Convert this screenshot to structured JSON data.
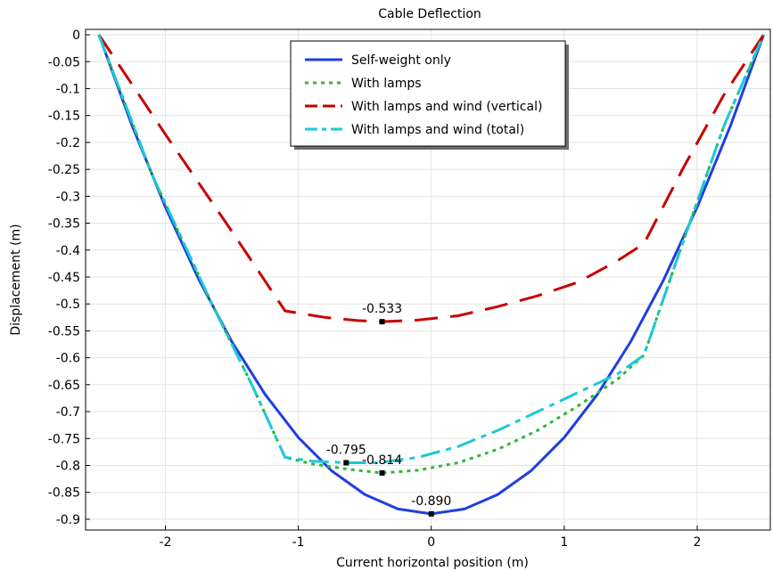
{
  "chart_data": {
    "type": "line",
    "title": "Cable Deflection",
    "xlabel": "Current horizontal position (m)",
    "ylabel": "Displacement (m)",
    "xlim": [
      -2.6,
      2.55
    ],
    "ylim": [
      -0.92,
      0.01
    ],
    "xticks": [
      -2,
      -1,
      0,
      1,
      2
    ],
    "yticks": [
      0,
      -0.05,
      -0.1,
      -0.15,
      -0.2,
      -0.25,
      -0.3,
      -0.35,
      -0.4,
      -0.45,
      -0.5,
      -0.55,
      -0.6,
      -0.65,
      -0.7,
      -0.75,
      -0.8,
      -0.85,
      -0.9
    ],
    "ytick_labels": [
      "0",
      "-0.05",
      "-0.1",
      "-0.15",
      "-0.2",
      "-0.25",
      "-0.3",
      "-0.35",
      "-0.4",
      "-0.45",
      "-0.5",
      "-0.55",
      "-0.6",
      "-0.65",
      "-0.7",
      "-0.75",
      "-0.8",
      "-0.85",
      "-0.9"
    ],
    "grid": true,
    "legend_position": "top-center",
    "series": [
      {
        "name": "Self-weight only",
        "color": "#1f3fe0",
        "style": "solid",
        "x": [
          -2.5,
          -2.25,
          -2.0,
          -1.75,
          -1.5,
          -1.25,
          -1.0,
          -0.75,
          -0.5,
          -0.25,
          0.0,
          0.25,
          0.5,
          0.75,
          1.0,
          1.25,
          1.5,
          1.75,
          2.0,
          2.25,
          2.5
        ],
        "y": [
          0.0,
          -0.169,
          -0.32,
          -0.454,
          -0.57,
          -0.668,
          -0.748,
          -0.81,
          -0.854,
          -0.881,
          -0.89,
          -0.881,
          -0.854,
          -0.81,
          -0.748,
          -0.668,
          -0.57,
          -0.454,
          -0.32,
          -0.169,
          0.0
        ]
      },
      {
        "name": "With lamps",
        "color": "#2db83d",
        "style": "dotted",
        "x": [
          -2.5,
          -2.1,
          -1.65,
          -1.35,
          -1.1,
          -0.9,
          -0.6,
          -0.37,
          -0.1,
          0.2,
          0.5,
          0.8,
          1.1,
          1.4,
          1.6,
          1.9,
          2.2,
          2.5
        ],
        "y": [
          0.0,
          -0.26,
          -0.5,
          -0.65,
          -0.785,
          -0.797,
          -0.808,
          -0.814,
          -0.809,
          -0.795,
          -0.77,
          -0.735,
          -0.69,
          -0.64,
          -0.595,
          -0.38,
          -0.17,
          0.0
        ]
      },
      {
        "name": "With lamps and wind (vertical)",
        "color": "#c80000",
        "style": "dashed",
        "x": [
          -2.5,
          -2.0,
          -1.5,
          -1.1,
          -0.8,
          -0.55,
          -0.37,
          -0.1,
          0.2,
          0.5,
          0.8,
          1.1,
          1.4,
          1.6,
          1.9,
          2.2,
          2.5
        ],
        "y": [
          0.0,
          -0.185,
          -0.365,
          -0.513,
          -0.525,
          -0.531,
          -0.533,
          -0.53,
          -0.522,
          -0.505,
          -0.485,
          -0.46,
          -0.42,
          -0.388,
          -0.245,
          -0.112,
          0.0
        ]
      },
      {
        "name": "With lamps and wind (total)",
        "color": "#1ec8d4",
        "style": "dashdot",
        "x": [
          -2.5,
          -2.1,
          -1.65,
          -1.35,
          -1.1,
          -0.9,
          -0.65,
          -0.4,
          -0.1,
          0.2,
          0.5,
          0.8,
          1.1,
          1.4,
          1.6,
          1.9,
          2.2,
          2.5
        ],
        "y": [
          0.0,
          -0.26,
          -0.5,
          -0.65,
          -0.785,
          -0.792,
          -0.795,
          -0.795,
          -0.785,
          -0.765,
          -0.735,
          -0.7,
          -0.665,
          -0.63,
          -0.595,
          -0.38,
          -0.17,
          0.0
        ]
      }
    ],
    "annotations": [
      {
        "x": 0.0,
        "y": -0.89,
        "label": "-0.890"
      },
      {
        "x": -0.37,
        "y": -0.533,
        "label": "-0.533"
      },
      {
        "x": -0.64,
        "y": -0.795,
        "label": "-0.795"
      },
      {
        "x": -0.37,
        "y": -0.814,
        "label": "-0.814"
      }
    ]
  }
}
